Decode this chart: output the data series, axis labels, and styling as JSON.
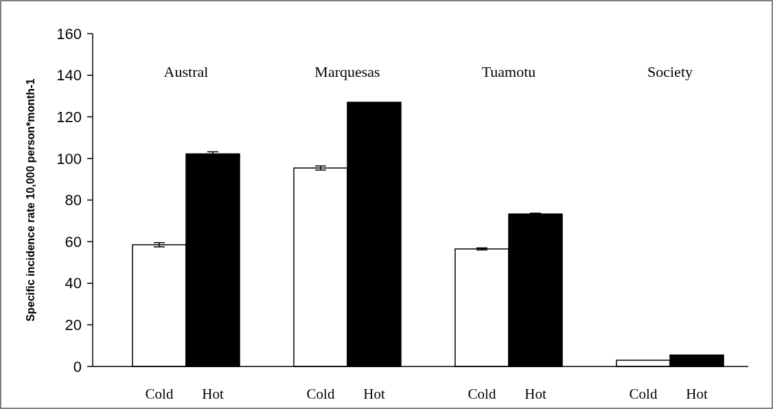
{
  "chart_data": {
    "type": "bar",
    "ylabel": "Specific incidence rate 10,000 person*month-1",
    "categories": [
      "Cold",
      "Hot",
      "Cold",
      "Hot",
      "Cold",
      "Hot",
      "Cold",
      "Hot"
    ],
    "values": [
      58.5,
      102.2,
      95.4,
      127,
      56.5,
      73.3,
      3,
      5.5
    ],
    "colors": [
      "#ffffff",
      "#000000",
      "#ffffff",
      "#000000",
      "#ffffff",
      "#000000",
      "#ffffff",
      "#000000"
    ],
    "errors": [
      1,
      1,
      1,
      null,
      0.5,
      0.4,
      null,
      null
    ],
    "annotations": [
      "Austral",
      "Marquesas",
      "Tuamotu",
      "Society"
    ],
    "ylim": [
      0,
      160
    ],
    "yticks": [
      0,
      20,
      40,
      60,
      80,
      100,
      120,
      140,
      160
    ],
    "grid": false
  }
}
